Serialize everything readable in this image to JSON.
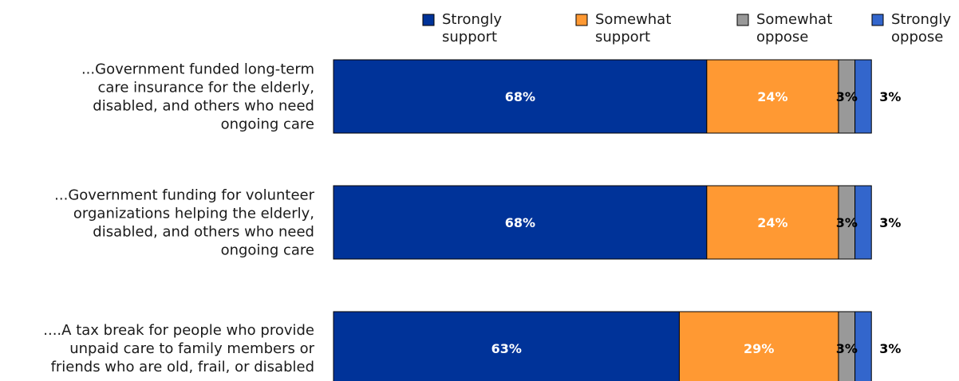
{
  "chart_data": {
    "type": "bar",
    "orientation": "horizontal",
    "stacked": true,
    "legend_position": "top",
    "xlim": [
      0,
      100
    ],
    "categories": [
      "...Government funded long-term care insurance for the elderly, disabled, and others who need ongoing care",
      "...Government funding for volunteer organizations helping the elderly, disabled, and others who need ongoing care",
      "....A tax break for people who provide unpaid care to family members or friends who are old, frail, or disabled"
    ],
    "category_lines": [
      [
        "...Government funded long-term",
        "care insurance for the elderly,",
        "disabled, and others who need",
        "ongoing care"
      ],
      [
        "...Government funding for volunteer",
        "organizations helping the elderly,",
        "disabled, and others who need",
        "ongoing care"
      ],
      [
        "....A tax break for people who provide",
        "unpaid care to family members or",
        "friends who are old, frail, or disabled"
      ]
    ],
    "series": [
      {
        "name": "Strongly support",
        "name_lines": [
          "Strongly",
          "support"
        ],
        "color": "#003399",
        "values": [
          68,
          68,
          63
        ],
        "labels": [
          "68%",
          "68%",
          "63%"
        ]
      },
      {
        "name": "Somewhat support",
        "name_lines": [
          "Somewhat",
          "support"
        ],
        "color": "#ff9933",
        "values": [
          24,
          24,
          29
        ],
        "labels": [
          "24%",
          "24%",
          "29%"
        ]
      },
      {
        "name": "Somewhat oppose",
        "name_lines": [
          "Somewhat",
          "oppose"
        ],
        "color": "#999999",
        "values": [
          3,
          3,
          3
        ],
        "labels": [
          "3%",
          "3%",
          "3%"
        ]
      },
      {
        "name": "Strongly oppose",
        "name_lines": [
          "Strongly",
          "oppose"
        ],
        "color": "#3366cc",
        "values": [
          3,
          3,
          3
        ],
        "labels": [
          "3%",
          "3%",
          "3%"
        ]
      }
    ]
  }
}
